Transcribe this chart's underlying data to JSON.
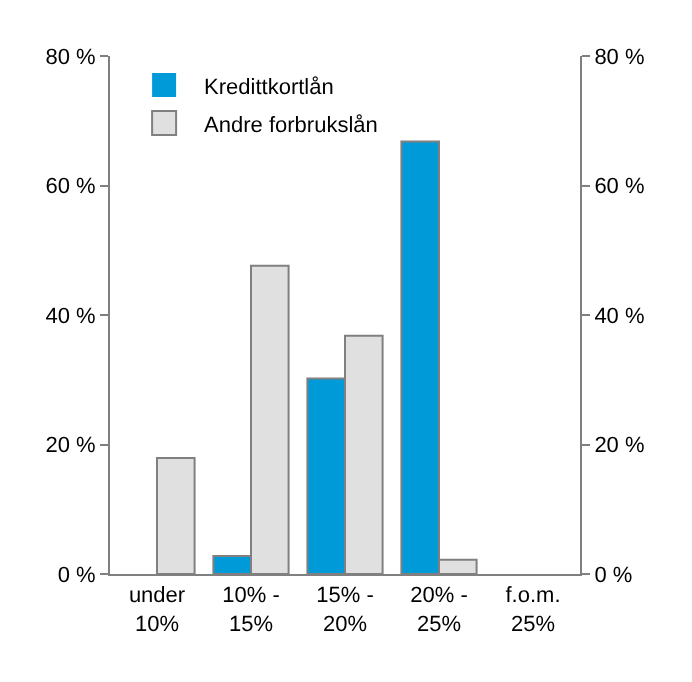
{
  "chart_data": {
    "type": "bar",
    "categories": [
      "under 10%",
      "10% - 15%",
      "15% - 20%",
      "20% - 25%",
      "f.o.m. 25%"
    ],
    "series": [
      {
        "name": "Kredittkortlån",
        "color": "#009ad8",
        "values": [
          0,
          2.8,
          30.2,
          66.8,
          0
        ]
      },
      {
        "name": "Andre forbrukslån",
        "color": "#e0e0e0",
        "values": [
          17.9,
          47.6,
          36.8,
          2.2,
          0
        ]
      }
    ],
    "ylim": [
      0,
      80
    ],
    "yticks": [
      {
        "value": 0,
        "label": "0 %"
      },
      {
        "value": 20,
        "label": "20 %"
      },
      {
        "value": 40,
        "label": "40 %"
      },
      {
        "value": 60,
        "label": "60 %"
      },
      {
        "value": 80,
        "label": "80 %"
      }
    ],
    "y2lim": [
      0,
      80
    ],
    "y2ticks": [
      {
        "value": 0,
        "label": "0 %"
      },
      {
        "value": 20,
        "label": "20 %"
      },
      {
        "value": 40,
        "label": "40 %"
      },
      {
        "value": 60,
        "label": "60 %"
      },
      {
        "value": 80,
        "label": "80 %"
      }
    ],
    "grid": false,
    "legend": "top left"
  }
}
